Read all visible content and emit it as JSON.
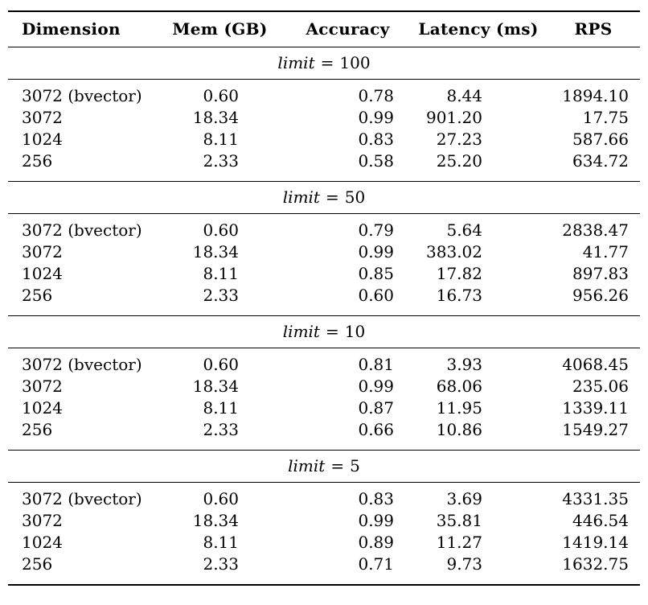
{
  "colors": {
    "text": "#000000",
    "background": "#ffffff",
    "rule": "#000000"
  },
  "table": {
    "columns": [
      {
        "label": "Dimension"
      },
      {
        "label": "Mem (GB)"
      },
      {
        "label": "Accuracy"
      },
      {
        "label": "Latency (ms)"
      },
      {
        "label": "RPS"
      }
    ],
    "sections": [
      {
        "title_var": "limit",
        "title_eq": "=",
        "title_value": "100",
        "rows": [
          {
            "dimension": "3072 (bvector)",
            "mem_gb": "0.60",
            "accuracy": "0.78",
            "latency_ms": "8.44",
            "rps": "1894.10"
          },
          {
            "dimension": "3072",
            "mem_gb": "18.34",
            "accuracy": "0.99",
            "latency_ms": "901.20",
            "rps": "17.75"
          },
          {
            "dimension": "1024",
            "mem_gb": "8.11",
            "accuracy": "0.83",
            "latency_ms": "27.23",
            "rps": "587.66"
          },
          {
            "dimension": "256",
            "mem_gb": "2.33",
            "accuracy": "0.58",
            "latency_ms": "25.20",
            "rps": "634.72"
          }
        ]
      },
      {
        "title_var": "limit",
        "title_eq": "=",
        "title_value": "50",
        "rows": [
          {
            "dimension": "3072 (bvector)",
            "mem_gb": "0.60",
            "accuracy": "0.79",
            "latency_ms": "5.64",
            "rps": "2838.47"
          },
          {
            "dimension": "3072",
            "mem_gb": "18.34",
            "accuracy": "0.99",
            "latency_ms": "383.02",
            "rps": "41.77"
          },
          {
            "dimension": "1024",
            "mem_gb": "8.11",
            "accuracy": "0.85",
            "latency_ms": "17.82",
            "rps": "897.83"
          },
          {
            "dimension": "256",
            "mem_gb": "2.33",
            "accuracy": "0.60",
            "latency_ms": "16.73",
            "rps": "956.26"
          }
        ]
      },
      {
        "title_var": "limit",
        "title_eq": "=",
        "title_value": "10",
        "rows": [
          {
            "dimension": "3072 (bvector)",
            "mem_gb": "0.60",
            "accuracy": "0.81",
            "latency_ms": "3.93",
            "rps": "4068.45"
          },
          {
            "dimension": "3072",
            "mem_gb": "18.34",
            "accuracy": "0.99",
            "latency_ms": "68.06",
            "rps": "235.06"
          },
          {
            "dimension": "1024",
            "mem_gb": "8.11",
            "accuracy": "0.87",
            "latency_ms": "11.95",
            "rps": "1339.11"
          },
          {
            "dimension": "256",
            "mem_gb": "2.33",
            "accuracy": "0.66",
            "latency_ms": "10.86",
            "rps": "1549.27"
          }
        ]
      },
      {
        "title_var": "limit",
        "title_eq": "=",
        "title_value": "5",
        "rows": [
          {
            "dimension": "3072 (bvector)",
            "mem_gb": "0.60",
            "accuracy": "0.83",
            "latency_ms": "3.69",
            "rps": "4331.35"
          },
          {
            "dimension": "3072",
            "mem_gb": "18.34",
            "accuracy": "0.99",
            "latency_ms": "35.81",
            "rps": "446.54"
          },
          {
            "dimension": "1024",
            "mem_gb": "8.11",
            "accuracy": "0.89",
            "latency_ms": "11.27",
            "rps": "1419.14"
          },
          {
            "dimension": "256",
            "mem_gb": "2.33",
            "accuracy": "0.71",
            "latency_ms": "9.73",
            "rps": "1632.75"
          }
        ]
      }
    ]
  }
}
